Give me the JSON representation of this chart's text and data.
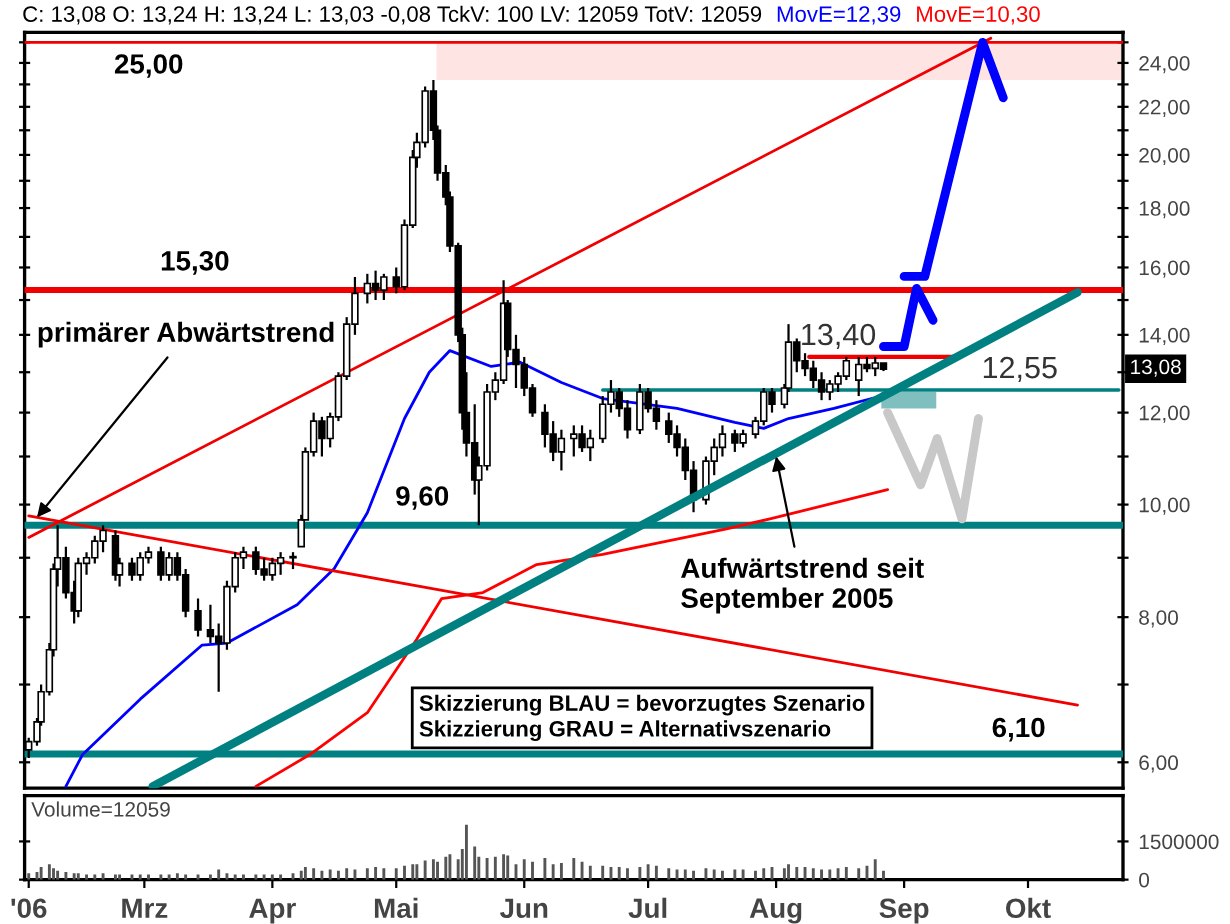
{
  "chart_data": [
    {
      "type": "candlestick",
      "log": true,
      "legend": "top",
      "tick_labels": "y",
      "xlim": [
        "2006-01-31",
        "2006-10-24"
      ],
      "ylim": [
        5.7,
        25.5
      ],
      "yticks": [
        {
          "value": 6,
          "label": "6,00"
        },
        {
          "value": 8,
          "label": "8,00"
        },
        {
          "value": 10,
          "label": "10,00"
        },
        {
          "value": 12,
          "label": "12,00"
        },
        {
          "value": 14,
          "label": "14,00"
        },
        {
          "value": 16,
          "label": "16,00"
        },
        {
          "value": 18,
          "label": "18,00"
        },
        {
          "value": 20,
          "label": "20,00"
        },
        {
          "value": 22,
          "label": "22,00"
        },
        {
          "value": 24,
          "label": "24,00"
        },
        {
          "value": 7,
          "label": null
        },
        {
          "value": 9,
          "label": null
        },
        {
          "value": 11,
          "label": null
        },
        {
          "value": 13,
          "label": null
        },
        {
          "value": 15,
          "label": null
        },
        {
          "value": 17,
          "label": null
        },
        {
          "value": 19,
          "label": null
        },
        {
          "value": 21,
          "label": null
        },
        {
          "value": 23,
          "label": null
        },
        {
          "value": 25,
          "label": null
        }
      ],
      "x": [
        "2006-02-01",
        "2006-02-03",
        "2006-02-04",
        "2006-02-06",
        "2006-02-07",
        "2006-02-08",
        "2006-02-10",
        "2006-02-12",
        "2006-02-13",
        "2006-02-15",
        "2006-02-17",
        "2006-02-19",
        "2006-02-22",
        "2006-02-23",
        "2006-02-26",
        "2006-02-28",
        "2006-03-02",
        "2006-03-05",
        "2006-03-07",
        "2006-03-09",
        "2006-03-11",
        "2006-03-14",
        "2006-03-17",
        "2006-03-19",
        "2006-03-21",
        "2006-03-23",
        "2006-03-25",
        "2006-03-28",
        "2006-03-30",
        "2006-04-01",
        "2006-04-03",
        "2006-04-06",
        "2006-04-08",
        "2006-04-09",
        "2006-04-11",
        "2006-04-13",
        "2006-04-15",
        "2006-04-17",
        "2006-04-19",
        "2006-04-21",
        "2006-04-24",
        "2006-04-26",
        "2006-04-28",
        "2006-05-01",
        "2006-05-03",
        "2006-05-05",
        "2006-05-06",
        "2006-05-08",
        "2006-05-10",
        "2006-05-11",
        "2006-05-13",
        "2006-05-14",
        "2006-05-16",
        "2006-05-17",
        "2006-05-18",
        "2006-05-20",
        "2006-05-21",
        "2006-05-23",
        "2006-05-25",
        "2006-05-27",
        "2006-05-28",
        "2006-05-30",
        "2006-06-01",
        "2006-06-03",
        "2006-06-06",
        "2006-06-08",
        "2006-06-10",
        "2006-06-13",
        "2006-06-15",
        "2006-06-17",
        "2006-06-20",
        "2006-06-22",
        "2006-06-24",
        "2006-06-26",
        "2006-06-29",
        "2006-07-01",
        "2006-07-03",
        "2006-07-06",
        "2006-07-08",
        "2006-07-10",
        "2006-07-12",
        "2006-07-15",
        "2006-07-17",
        "2006-07-19",
        "2006-07-22",
        "2006-07-24",
        "2006-07-27",
        "2006-07-29",
        "2006-07-31",
        "2006-08-03",
        "2006-08-04",
        "2006-08-06",
        "2006-08-08",
        "2006-08-10",
        "2006-08-12",
        "2006-08-14",
        "2006-08-16",
        "2006-08-18",
        "2006-08-21",
        "2006-08-23",
        "2006-08-25",
        "2006-08-27"
      ],
      "ohlc": [
        [
          6.15,
          6.3,
          6.05,
          6.25
        ],
        [
          6.25,
          6.55,
          6.2,
          6.5
        ],
        [
          6.5,
          7.0,
          6.45,
          6.9
        ],
        [
          6.9,
          7.6,
          6.85,
          7.5
        ],
        [
          7.5,
          8.9,
          7.4,
          8.8
        ],
        [
          8.8,
          9.6,
          8.5,
          9.0
        ],
        [
          9.0,
          9.2,
          8.3,
          8.4
        ],
        [
          8.4,
          8.6,
          7.9,
          8.1
        ],
        [
          8.1,
          9.0,
          8.0,
          8.9
        ],
        [
          8.9,
          9.1,
          8.7,
          9.0
        ],
        [
          9.0,
          9.4,
          8.9,
          9.3
        ],
        [
          9.3,
          9.6,
          9.1,
          9.5
        ],
        [
          9.4,
          9.5,
          8.6,
          8.7
        ],
        [
          8.7,
          9.0,
          8.5,
          8.9
        ],
        [
          8.9,
          9.0,
          8.6,
          8.7
        ],
        [
          8.7,
          9.1,
          8.6,
          9.0
        ],
        [
          9.0,
          9.2,
          8.9,
          9.1
        ],
        [
          9.1,
          9.2,
          8.6,
          8.7
        ],
        [
          8.7,
          9.1,
          8.6,
          9.0
        ],
        [
          9.0,
          9.1,
          8.6,
          8.7
        ],
        [
          8.7,
          8.8,
          8.0,
          8.1
        ],
        [
          8.1,
          8.3,
          7.7,
          7.8
        ],
        [
          7.8,
          8.2,
          7.6,
          7.7
        ],
        [
          7.7,
          7.9,
          6.9,
          7.6
        ],
        [
          7.6,
          8.6,
          7.5,
          8.5
        ],
        [
          8.5,
          9.1,
          8.4,
          9.0
        ],
        [
          9.0,
          9.2,
          8.8,
          9.1
        ],
        [
          9.1,
          9.2,
          8.7,
          8.8
        ],
        [
          8.8,
          9.0,
          8.6,
          8.7
        ],
        [
          8.7,
          9.0,
          8.6,
          8.9
        ],
        [
          8.9,
          9.1,
          8.7,
          9.0
        ],
        [
          9.0,
          9.1,
          8.8,
          9.0
        ],
        [
          9.2,
          9.8,
          9.2,
          9.7
        ],
        [
          9.7,
          11.2,
          9.7,
          11.1
        ],
        [
          11.1,
          12.0,
          11.0,
          11.8
        ],
        [
          11.8,
          11.9,
          11.0,
          11.4
        ],
        [
          11.4,
          12.0,
          11.2,
          11.9
        ],
        [
          11.9,
          13.0,
          11.8,
          12.9
        ],
        [
          12.9,
          14.5,
          12.8,
          14.3
        ],
        [
          14.3,
          15.7,
          14.0,
          15.2
        ],
        [
          15.2,
          15.8,
          14.9,
          15.5
        ],
        [
          15.5,
          15.9,
          15.0,
          15.3
        ],
        [
          15.3,
          15.8,
          15.0,
          15.7
        ],
        [
          15.7,
          16.0,
          15.2,
          15.4
        ],
        [
          15.4,
          17.6,
          15.3,
          17.4
        ],
        [
          17.4,
          20.2,
          17.3,
          19.9
        ],
        [
          19.9,
          20.9,
          19.5,
          20.5
        ],
        [
          20.5,
          22.9,
          20.3,
          22.7
        ],
        [
          22.7,
          23.2,
          20.6,
          21.0
        ],
        [
          21.0,
          21.2,
          19.0,
          19.3
        ],
        [
          19.3,
          19.6,
          18.1,
          18.4
        ],
        [
          18.4,
          18.6,
          16.5,
          16.7
        ],
        [
          16.7,
          16.8,
          13.8,
          14.0
        ],
        [
          14.0,
          14.2,
          11.6,
          12.0
        ],
        [
          12.0,
          13.0,
          11.0,
          11.3
        ],
        [
          11.3,
          12.2,
          10.2,
          10.5
        ],
        [
          10.5,
          11.0,
          9.6,
          10.8
        ],
        [
          10.8,
          12.7,
          10.7,
          12.5
        ],
        [
          12.5,
          13.0,
          12.3,
          12.8
        ],
        [
          12.8,
          15.6,
          12.7,
          14.9
        ],
        [
          14.9,
          15.0,
          13.4,
          13.6
        ],
        [
          13.6,
          14.0,
          12.6,
          13.2
        ],
        [
          13.2,
          13.4,
          12.4,
          12.6
        ],
        [
          12.6,
          12.7,
          11.9,
          12.0
        ],
        [
          12.0,
          12.2,
          11.2,
          11.5
        ],
        [
          11.5,
          11.8,
          10.9,
          11.1
        ],
        [
          11.1,
          11.6,
          10.7,
          11.4
        ],
        [
          11.4,
          11.7,
          11.0,
          11.5
        ],
        [
          11.5,
          11.7,
          11.1,
          11.2
        ],
        [
          11.2,
          11.6,
          10.9,
          11.4
        ],
        [
          11.4,
          12.4,
          11.3,
          12.2
        ],
        [
          12.2,
          12.8,
          12.0,
          12.5
        ],
        [
          12.5,
          12.6,
          11.9,
          12.1
        ],
        [
          12.1,
          12.3,
          11.4,
          11.6
        ],
        [
          11.6,
          12.7,
          11.5,
          12.5
        ],
        [
          12.5,
          12.6,
          12.0,
          12.1
        ],
        [
          12.1,
          12.3,
          11.6,
          11.8
        ],
        [
          11.8,
          12.0,
          11.3,
          11.5
        ],
        [
          11.5,
          11.7,
          11.0,
          11.2
        ],
        [
          11.2,
          11.4,
          10.5,
          10.7
        ],
        [
          10.7,
          10.9,
          9.85,
          10.1
        ],
        [
          10.1,
          11.0,
          10.0,
          10.9
        ],
        [
          10.9,
          11.4,
          10.6,
          11.2
        ],
        [
          11.2,
          11.7,
          11.0,
          11.5
        ],
        [
          11.5,
          11.6,
          11.1,
          11.3
        ],
        [
          11.3,
          11.6,
          11.2,
          11.5
        ],
        [
          11.5,
          11.9,
          11.4,
          11.8
        ],
        [
          11.8,
          12.6,
          11.7,
          12.5
        ],
        [
          12.5,
          12.6,
          12.0,
          12.2
        ],
        [
          12.2,
          12.7,
          12.1,
          12.6
        ],
        [
          12.6,
          14.3,
          12.5,
          13.8
        ],
        [
          13.8,
          13.9,
          13.0,
          13.3
        ],
        [
          13.3,
          13.5,
          12.9,
          13.1
        ],
        [
          13.1,
          13.3,
          12.6,
          12.8
        ],
        [
          12.8,
          13.0,
          12.3,
          12.5
        ],
        [
          12.5,
          12.8,
          12.3,
          12.7
        ],
        [
          12.7,
          13.0,
          12.5,
          12.9
        ],
        [
          12.9,
          13.4,
          12.8,
          13.3
        ],
        [
          12.8,
          13.4,
          12.4,
          13.2
        ],
        [
          13.2,
          13.4,
          13.0,
          13.1
        ],
        [
          13.1,
          13.4,
          12.9,
          13.24
        ],
        [
          13.24,
          13.24,
          13.03,
          13.08
        ]
      ],
      "series": [
        {
          "name": "MovE=12,39",
          "type": "line",
          "color": "#0000ff",
          "x": [
            "2006-02-10",
            "2006-02-14",
            "2006-02-28",
            "2006-03-15",
            "2006-03-21",
            "2006-04-07",
            "2006-04-16",
            "2006-04-24",
            "2006-05-03",
            "2006-05-09",
            "2006-05-14",
            "2006-05-24",
            "2006-05-31",
            "2006-06-10",
            "2006-06-20",
            "2006-07-08",
            "2006-07-22",
            "2006-07-29",
            "2006-08-04",
            "2006-08-15",
            "2006-08-26"
          ],
          "values": [
            5.72,
            6.09,
            6.8,
            7.57,
            7.6,
            8.2,
            8.81,
            9.84,
            11.86,
            13.0,
            13.57,
            13.15,
            13.26,
            12.74,
            12.34,
            12.1,
            11.77,
            11.63,
            11.86,
            12.1,
            12.39
          ]
        },
        {
          "name": "MovE=10,30",
          "type": "line",
          "color": "#ff0000",
          "x": [
            "2006-03-28",
            "2006-04-10",
            "2006-04-24",
            "2006-05-06",
            "2006-05-12",
            "2006-05-22",
            "2006-06-04",
            "2006-06-20",
            "2006-07-20",
            "2006-07-31",
            "2006-08-28"
          ],
          "values": [
            5.72,
            6.09,
            6.62,
            7.66,
            8.3,
            8.4,
            8.88,
            9.06,
            9.53,
            9.73,
            10.3
          ]
        },
        {
          "type": "line",
          "color": "#f00000",
          "x": [
            "2006-02-01",
            "2006-09-22"
          ],
          "values": [
            9.37,
            25.2
          ]
        },
        {
          "type": "line",
          "color": "#f00000",
          "x": [
            "2006-02-01",
            "2006-10-13"
          ],
          "values": [
            9.78,
            6.72
          ]
        },
        {
          "type": "line",
          "color": "#008080",
          "x": [
            "2006-03-03",
            "2006-10-13"
          ],
          "values": [
            5.72,
            15.23
          ]
        },
        {
          "type": "line",
          "color": "#008080",
          "x": [
            "2006-06-20",
            "2006-10-23"
          ],
          "values": [
            12.55,
            12.55
          ]
        },
        {
          "type": "line",
          "color": "#f00000",
          "x": [
            "2006-08-09",
            "2006-09-14"
          ],
          "values": [
            13.4,
            13.4
          ]
        },
        {
          "type": "line",
          "color": "#0000ff",
          "x": [
            "2006-08-27",
            "2006-09-01",
            "2006-09-04",
            "2006-09-08"
          ],
          "values": [
            13.68,
            13.68,
            15.35,
            14.41
          ]
        },
        {
          "type": "line",
          "color": "#0000ff",
          "x": [
            "2006-09-01",
            "2006-09-06",
            "2006-09-20",
            "2006-09-25"
          ],
          "values": [
            15.72,
            15.72,
            25.0,
            22.4
          ]
        },
        {
          "type": "line",
          "color": "#c8c8c8",
          "x": [
            "2006-08-28",
            "2006-09-05",
            "2006-09-09",
            "2006-09-15",
            "2006-09-19"
          ],
          "values": [
            12.0,
            10.4,
            11.4,
            9.72,
            11.86
          ]
        }
      ],
      "bands": [
        {
          "axis": "y",
          "from": 23.2,
          "to": 25.0,
          "color": "#ffe4e4"
        },
        {
          "axis": "y",
          "from": 12.1,
          "to": 12.5,
          "color": "#7fbfbf"
        }
      ],
      "ref_lines": [
        {
          "axis": "y",
          "value": 25.0,
          "label": "25,00",
          "color": "#f00000"
        },
        {
          "axis": "y",
          "value": 15.3,
          "label": "15,30",
          "color": "#f00000"
        },
        {
          "axis": "y",
          "value": 9.6,
          "label": "9,60",
          "color": "#008080"
        },
        {
          "axis": "y",
          "value": 6.1,
          "label": "6,10",
          "color": "#008080"
        }
      ],
      "annotations": [
        "C: 13,08 O: 13,24 H: 13,24 L: 13,03 -0,08 TckV: 100 LV: 12059 TotV: 12059",
        {
          "text": "primärer Abwärtstrend",
          "x": "2006-02-03",
          "y": 9.75
        },
        {
          "text": "Aufwärtstrend seit\nSeptember 2005",
          "x": "2006-08-01",
          "y": 11.0
        },
        {
          "text": "13,40",
          "x": "2006-08-16",
          "y": 13.4
        },
        {
          "text": "12,55",
          "x": "2006-09-29",
          "y": 12.55
        },
        "13,08",
        "Skizzierung BLAU = bevorzugtes Szenario\nSkizzierung GRAU = Alternativszenario"
      ]
    },
    {
      "type": "bar",
      "color": "#555555",
      "xlim": [
        "2006-01-31",
        "2006-10-24"
      ],
      "ylim": [
        0,
        3300000
      ],
      "yticks": [
        0,
        1500000
      ],
      "xticks": [
        {
          "value": "2006-02-01",
          "label": "'06"
        },
        {
          "value": "2006-03-01",
          "label": "Mrz"
        },
        {
          "value": "2006-04-01",
          "label": "Apr"
        },
        {
          "value": "2006-05-01",
          "label": "Mai"
        },
        {
          "value": "2006-06-01",
          "label": "Jun"
        },
        {
          "value": "2006-07-01",
          "label": "Jul"
        },
        {
          "value": "2006-08-01",
          "label": "Aug"
        },
        {
          "value": "2006-09-01",
          "label": "Sep"
        },
        {
          "value": "2006-10-01",
          "label": "Okt"
        }
      ],
      "x": [
        "2006-02-01",
        "2006-02-03",
        "2006-02-04",
        "2006-02-06",
        "2006-02-07",
        "2006-02-08",
        "2006-02-10",
        "2006-02-12",
        "2006-02-13",
        "2006-02-15",
        "2006-02-17",
        "2006-02-19",
        "2006-02-22",
        "2006-02-23",
        "2006-02-26",
        "2006-02-28",
        "2006-03-02",
        "2006-03-05",
        "2006-03-07",
        "2006-03-09",
        "2006-03-11",
        "2006-03-14",
        "2006-03-17",
        "2006-03-19",
        "2006-03-21",
        "2006-03-23",
        "2006-03-25",
        "2006-03-28",
        "2006-03-30",
        "2006-04-01",
        "2006-04-03",
        "2006-04-06",
        "2006-04-08",
        "2006-04-09",
        "2006-04-11",
        "2006-04-13",
        "2006-04-15",
        "2006-04-17",
        "2006-04-19",
        "2006-04-21",
        "2006-04-24",
        "2006-04-26",
        "2006-04-28",
        "2006-05-01",
        "2006-05-03",
        "2006-05-05",
        "2006-05-06",
        "2006-05-08",
        "2006-05-10",
        "2006-05-11",
        "2006-05-13",
        "2006-05-14",
        "2006-05-16",
        "2006-05-17",
        "2006-05-18",
        "2006-05-20",
        "2006-05-21",
        "2006-05-23",
        "2006-05-25",
        "2006-05-27",
        "2006-05-28",
        "2006-05-30",
        "2006-06-01",
        "2006-06-03",
        "2006-06-06",
        "2006-06-08",
        "2006-06-10",
        "2006-06-13",
        "2006-06-15",
        "2006-06-17",
        "2006-06-20",
        "2006-06-22",
        "2006-06-24",
        "2006-06-26",
        "2006-06-29",
        "2006-07-01",
        "2006-07-03",
        "2006-07-06",
        "2006-07-08",
        "2006-07-10",
        "2006-07-12",
        "2006-07-15",
        "2006-07-17",
        "2006-07-19",
        "2006-07-22",
        "2006-07-24",
        "2006-07-27",
        "2006-07-29",
        "2006-07-31",
        "2006-08-03",
        "2006-08-04",
        "2006-08-06",
        "2006-08-08",
        "2006-08-10",
        "2006-08-12",
        "2006-08-14",
        "2006-08-16",
        "2006-08-18",
        "2006-08-21",
        "2006-08-23",
        "2006-08-25",
        "2006-08-27"
      ],
      "values": [
        250000,
        300000,
        500000,
        600000,
        450000,
        350000,
        300000,
        250000,
        250000,
        200000,
        200000,
        250000,
        200000,
        200000,
        200000,
        200000,
        200000,
        200000,
        200000,
        250000,
        200000,
        200000,
        200000,
        400000,
        250000,
        200000,
        200000,
        200000,
        200000,
        200000,
        200000,
        250000,
        350000,
        500000,
        450000,
        350000,
        400000,
        350000,
        450000,
        400000,
        450000,
        500000,
        450000,
        450000,
        550000,
        600000,
        600000,
        750000,
        800000,
        700000,
        900000,
        1000000,
        800000,
        1200000,
        2150000,
        1300000,
        900000,
        850000,
        900000,
        1000000,
        950000,
        600000,
        800000,
        700000,
        850000,
        600000,
        650000,
        850000,
        700000,
        550000,
        550000,
        500000,
        500000,
        450000,
        500000,
        600000,
        550000,
        450000,
        400000,
        400000,
        350000,
        450000,
        400000,
        350000,
        400000,
        400000,
        350000,
        450000,
        500000,
        450000,
        600000,
        500000,
        500000,
        450000,
        400000,
        400000,
        450000,
        500000,
        450000,
        550000,
        800000,
        350000
      ],
      "annotations": [
        "Volume=12059"
      ]
    }
  ]
}
